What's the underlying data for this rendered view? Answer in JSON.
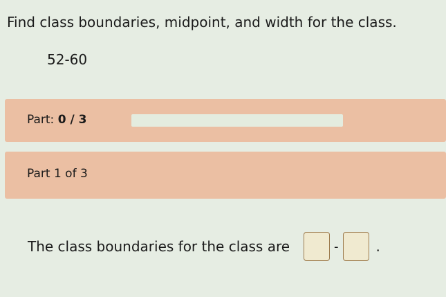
{
  "question": "Find class boundaries, midpoint, and width for the class.",
  "class_interval": "52-60",
  "progress": {
    "label": "Part:",
    "value": "0 / 3",
    "fraction": 0
  },
  "part": {
    "label": "Part 1 of 3"
  },
  "prompt": {
    "text": "The class boundaries for the class are",
    "separator": "-",
    "end": ".",
    "lower_value": "",
    "upper_value": ""
  },
  "colors": {
    "panel": "#ebbfa3",
    "background": "#e6ede3",
    "input_border": "#9c7a4c"
  }
}
